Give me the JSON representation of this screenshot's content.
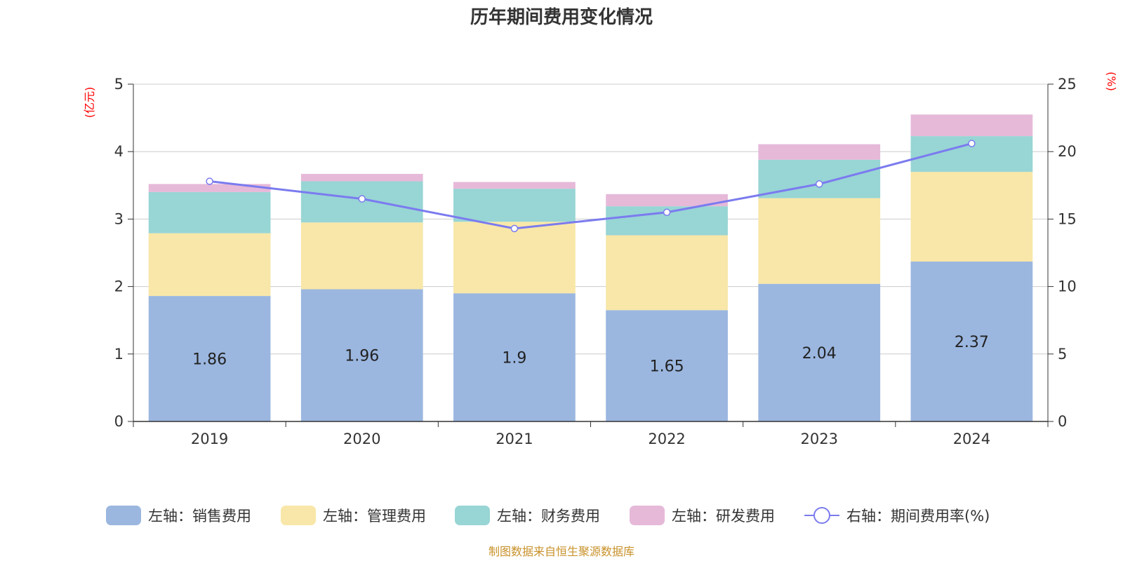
{
  "chart_data": {
    "type": "bar",
    "stacked": true,
    "title": "历年期间费用变化情况",
    "categories": [
      "2019",
      "2020",
      "2021",
      "2022",
      "2023",
      "2024"
    ],
    "left_axis": {
      "unit": "(亿元)",
      "ylim": [
        0,
        5
      ],
      "ticks": [
        "0",
        "1",
        "2",
        "3",
        "4",
        "5"
      ]
    },
    "right_axis": {
      "unit": "(%)",
      "ylim": [
        0,
        25
      ],
      "ticks": [
        "0",
        "5",
        "10",
        "15",
        "20",
        "25"
      ]
    },
    "series": [
      {
        "name": "左轴：销售费用",
        "axis": "left",
        "kind": "bar",
        "color": "#9bb7e0",
        "values": [
          1.86,
          1.96,
          1.9,
          1.65,
          2.04,
          2.37
        ],
        "labels": [
          "1.86",
          "1.96",
          "1.9",
          "1.65",
          "2.04",
          "2.37"
        ]
      },
      {
        "name": "左轴：管理费用",
        "axis": "left",
        "kind": "bar",
        "color": "#f8e7a8",
        "values": [
          0.93,
          0.99,
          1.06,
          1.11,
          1.27,
          1.33
        ]
      },
      {
        "name": "左轴：财务费用",
        "axis": "left",
        "kind": "bar",
        "color": "#98d5d5",
        "values": [
          0.61,
          0.61,
          0.49,
          0.43,
          0.57,
          0.53
        ]
      },
      {
        "name": "左轴：研发费用",
        "axis": "left",
        "kind": "bar",
        "color": "#e6b9d9",
        "values": [
          0.12,
          0.11,
          0.1,
          0.18,
          0.23,
          0.32
        ]
      },
      {
        "name": "右轴：期间费用率(%)",
        "axis": "right",
        "kind": "line",
        "color": "#7b7bef",
        "values": [
          17.8,
          16.5,
          14.3,
          15.5,
          17.6,
          20.6
        ]
      }
    ],
    "legend_position": "bottom",
    "grid": true
  },
  "footer": {
    "source": "制图数据来自恒生聚源数据库",
    "color": "#c8922b"
  }
}
